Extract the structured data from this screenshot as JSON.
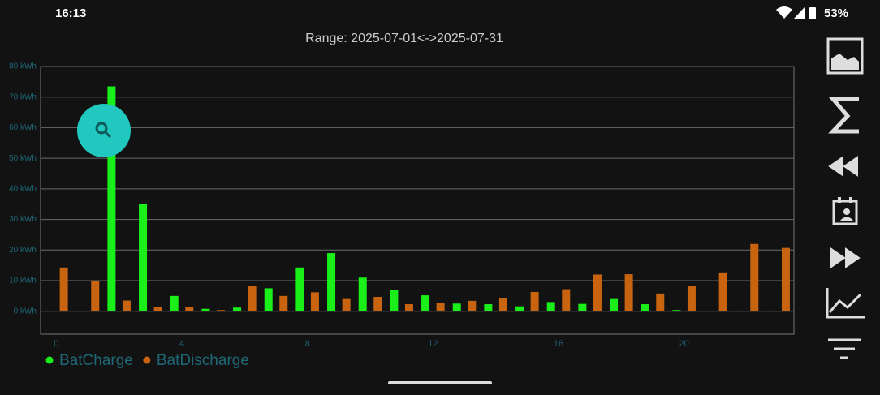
{
  "status_bar": {
    "time": "16:13",
    "battery": "53%"
  },
  "chart_data": {
    "type": "bar",
    "title": "Range: 2025-07-01<->2025-07-31",
    "x": [
      0,
      1,
      2,
      3,
      4,
      5,
      6,
      7,
      8,
      9,
      10,
      11,
      12,
      13,
      14,
      15,
      16,
      17,
      18,
      19,
      20,
      21,
      22,
      23
    ],
    "series": [
      {
        "name": "BatCharge",
        "color": "#1aef1a",
        "values": [
          0,
          0,
          73.5,
          35,
          5,
          0.8,
          1.2,
          7.5,
          14.3,
          19,
          11,
          7,
          5.2,
          2.5,
          2.3,
          1.6,
          3,
          2.4,
          4,
          2.3,
          0.4,
          0,
          0.2,
          0.2
        ]
      },
      {
        "name": "BatDischarge",
        "color": "#c8640f",
        "values": [
          14.3,
          10,
          3.5,
          1.5,
          1.5,
          0.4,
          8.2,
          5,
          6.2,
          4,
          4.7,
          2.3,
          2.6,
          3.4,
          4.3,
          6.3,
          7.2,
          12,
          12.1,
          5.8,
          8.2,
          12.7,
          22,
          20.7
        ]
      }
    ],
    "xlim": [
      -0.5,
      23.5
    ],
    "xticks": [
      0,
      4,
      8,
      12,
      16,
      20
    ],
    "ylim": [
      -7.5,
      80
    ],
    "yticks": [
      {
        "value": 0,
        "label": "0 kWh"
      },
      {
        "value": 10,
        "label": "10 kWh"
      },
      {
        "value": 20,
        "label": "20 kWh"
      },
      {
        "value": 30,
        "label": "30 kWh"
      },
      {
        "value": 40,
        "label": "40 kWh"
      },
      {
        "value": 50,
        "label": "50 kWh"
      },
      {
        "value": 60,
        "label": "60 kWh"
      },
      {
        "value": 70,
        "label": "70 kWh"
      },
      {
        "value": 80,
        "label": "80 kWh"
      }
    ],
    "grid": true
  }
}
